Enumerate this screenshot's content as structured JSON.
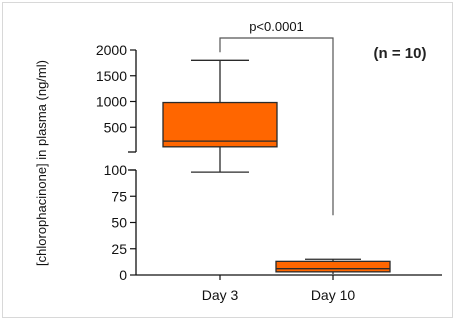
{
  "chart_data": {
    "type": "box",
    "ylabel": "[chlorophacinone] in plasma (ng/ml)",
    "categories": [
      "Day 3",
      "Day 10"
    ],
    "y_axis_break": true,
    "upper_segment": {
      "ylim": [
        0,
        2000
      ],
      "ticks": [
        "500",
        "1000",
        "1500",
        "2000"
      ]
    },
    "lower_segment": {
      "ylim": [
        0,
        100
      ],
      "ticks": [
        "0",
        "25",
        "50",
        "75",
        "100"
      ]
    },
    "series": [
      {
        "boxes": [
          {
            "category": "Day 3",
            "min": 98,
            "q1": 120,
            "median": 230,
            "q3": 980,
            "max": 1800
          },
          {
            "category": "Day 10",
            "min": 1,
            "q1": 3,
            "median": 6,
            "q3": 13,
            "max": 15
          }
        ]
      }
    ],
    "annotations": {
      "significance": "p<0.0001",
      "sample_size": "(n = 10)"
    },
    "colors": {
      "box_fill": "#ff6600",
      "box_stroke": "#2a2a2a",
      "axis": "#111111"
    }
  }
}
